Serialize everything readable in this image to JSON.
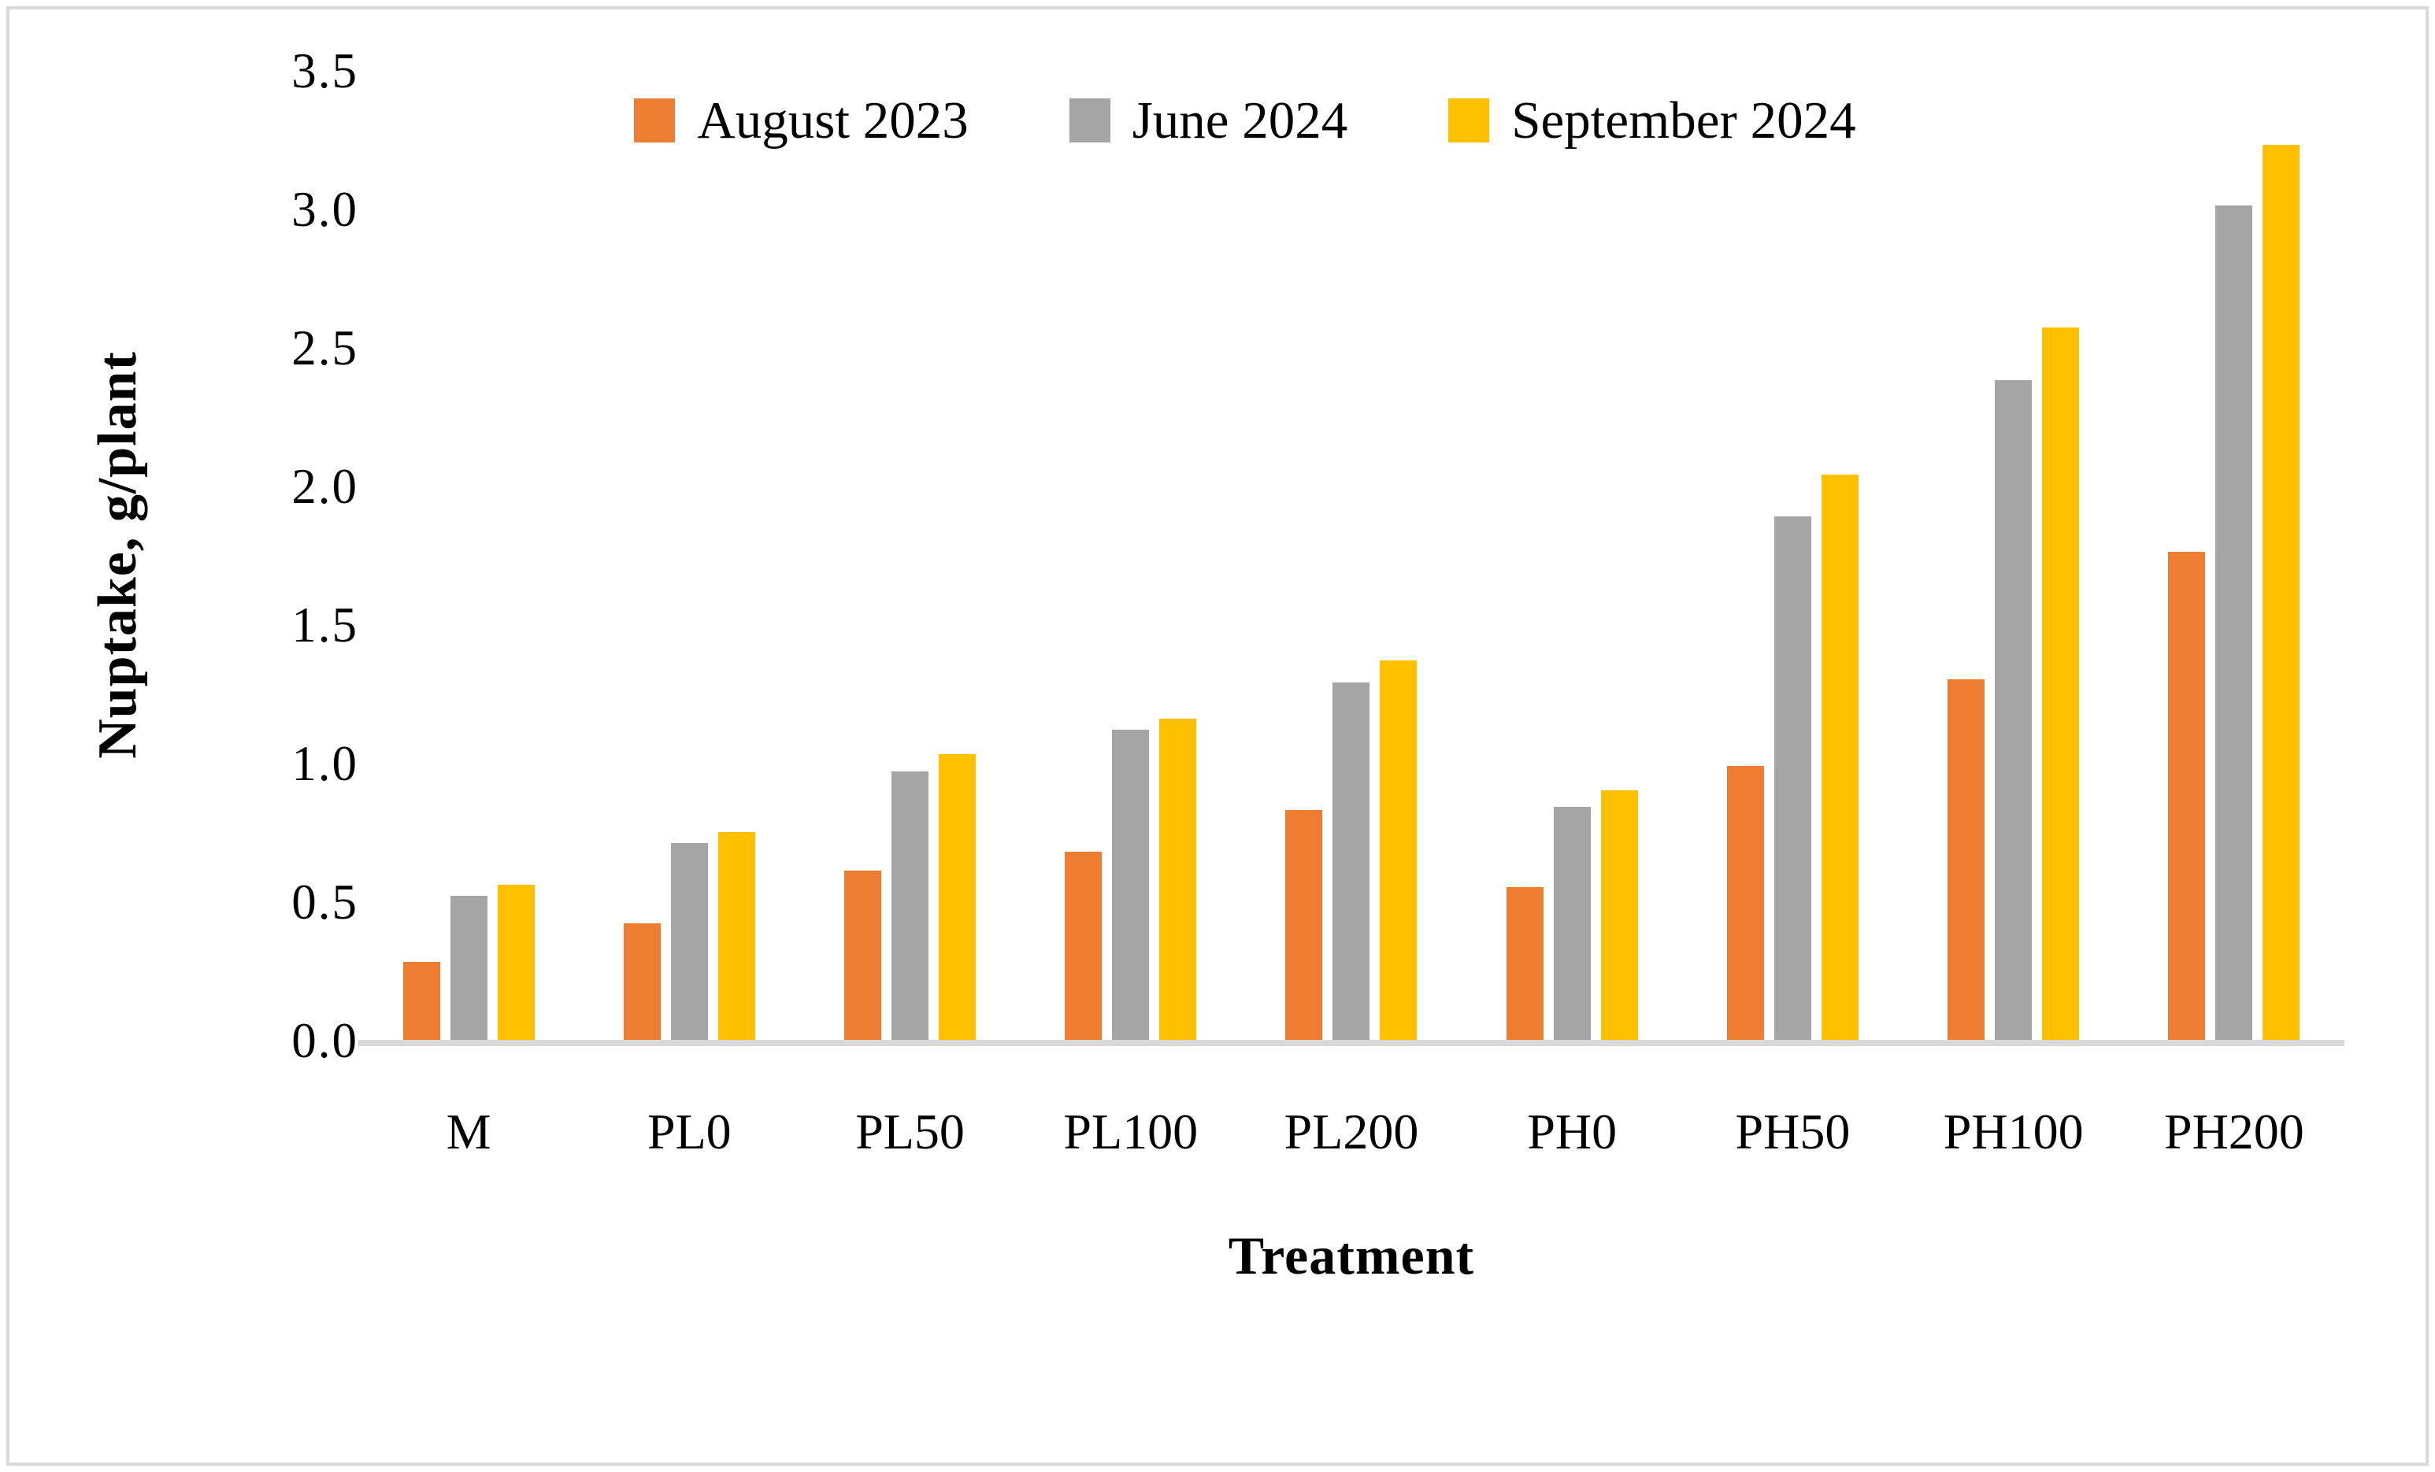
{
  "chart_data": {
    "type": "bar",
    "title": "",
    "xlabel": "Treatment",
    "ylabel": "Nuptake, g/plant",
    "categories": [
      "M",
      "PL0",
      "PL50",
      "PL100",
      "PL200",
      "PH0",
      "PH50",
      "PH100",
      "PH200"
    ],
    "series": [
      {
        "name": "August 2023",
        "color": "#ED7D31",
        "values": [
          0.28,
          0.42,
          0.61,
          0.68,
          0.83,
          0.55,
          0.99,
          1.3,
          1.76
        ]
      },
      {
        "name": "June 2024",
        "color": "#A5A5A5",
        "values": [
          0.52,
          0.71,
          0.97,
          1.12,
          1.29,
          0.84,
          1.89,
          2.38,
          3.01
        ]
      },
      {
        "name": "September 2024",
        "color": "#FFC000",
        "values": [
          0.56,
          0.75,
          1.03,
          1.16,
          1.37,
          0.9,
          2.04,
          2.57,
          3.23
        ]
      }
    ],
    "ylim": [
      0,
      3.5
    ],
    "yticks": [
      0.0,
      0.5,
      1.0,
      1.5,
      2.0,
      2.5,
      3.0,
      3.5
    ],
    "ytick_decimals": 1,
    "grid": false,
    "legend_position": "top-center",
    "axis_line_color": "#d9d9d9",
    "frame_border_color": "#d9d9d9",
    "text_color": "#000000"
  }
}
